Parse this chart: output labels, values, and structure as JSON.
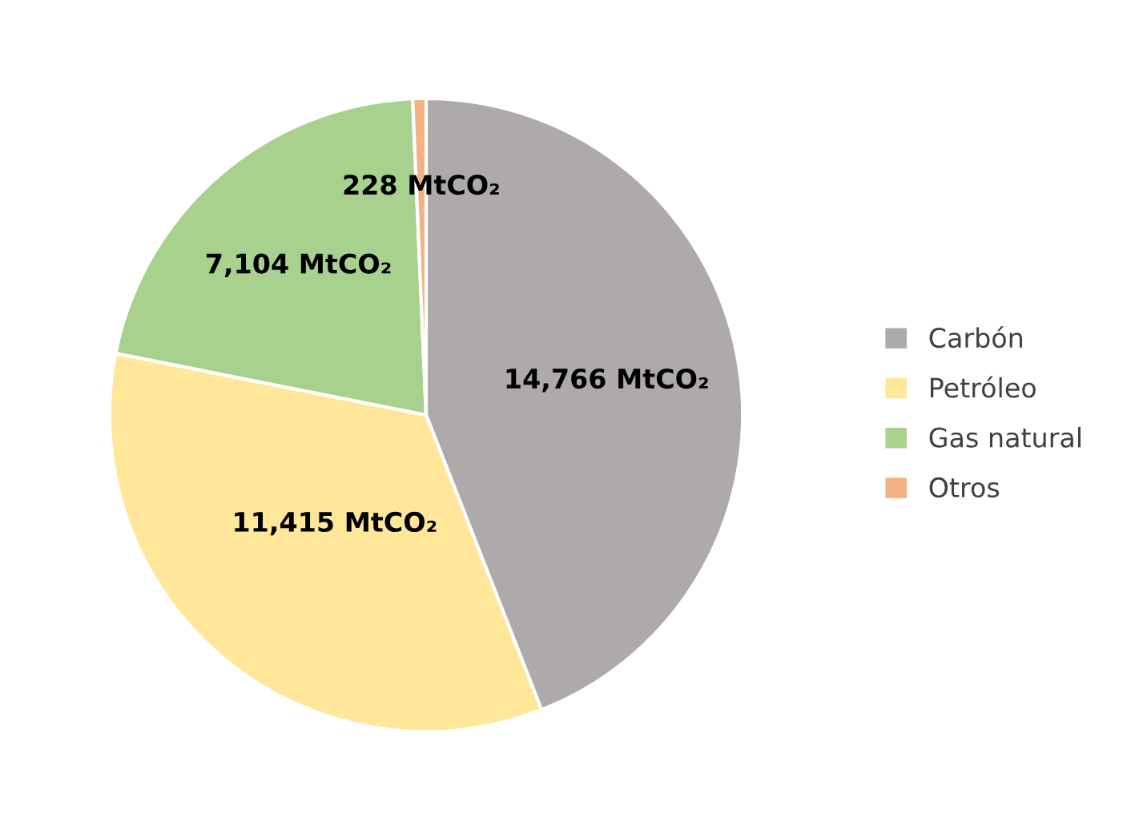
{
  "chart_data": {
    "type": "pie",
    "categories": [
      "Carbón",
      "Petróleo",
      "Gas natural",
      "Otros"
    ],
    "values": [
      14766,
      11415,
      7104,
      228
    ],
    "colors": [
      "#aeaaaa",
      "#ffe699",
      "#a9d18e",
      "#f4b183"
    ],
    "value_labels": [
      "14,766 MtCO₂",
      "11,415 MtCO₂",
      "7,104 MtCO₂",
      "228 MtCO₂"
    ],
    "legend": "right"
  }
}
